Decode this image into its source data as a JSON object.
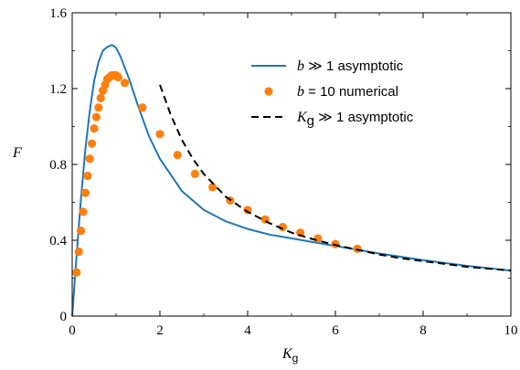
{
  "chart_data": {
    "type": "line",
    "xlabel": {
      "symbol": "K",
      "subscript": "g"
    },
    "ylabel": "F",
    "xlim": [
      0,
      10
    ],
    "ylim": [
      0,
      1.6
    ],
    "x_ticks": [
      0,
      2,
      4,
      6,
      8,
      10
    ],
    "x_tick_labels": [
      "0",
      "2",
      "4",
      "6",
      "8",
      "10"
    ],
    "y_ticks": [
      0,
      0.4,
      0.8,
      1.2,
      1.6
    ],
    "y_tick_labels": [
      "0",
      "0.4",
      "0.8",
      "1.2",
      "1.6"
    ],
    "minor_x_step": 1,
    "minor_y_step": 0.2,
    "grid": false,
    "legend_position": "top-right",
    "series": [
      {
        "name": "b ≫ 1 asymptotic",
        "legend_math": "b",
        "legend_rest": " ≫ 1 asymptotic",
        "style": "line",
        "color": "#1f77b4",
        "x": [
          0,
          0.05,
          0.1,
          0.15,
          0.2,
          0.3,
          0.4,
          0.5,
          0.6,
          0.7,
          0.8,
          0.9,
          0.95,
          1.0,
          1.1,
          1.2,
          1.3,
          1.5,
          1.75,
          2.0,
          2.5,
          3.0,
          3.5,
          4.0,
          4.5,
          5.0,
          5.5,
          6.0,
          7.0,
          8.0,
          9.0,
          10.0
        ],
        "y": [
          0,
          0.16,
          0.32,
          0.47,
          0.62,
          0.88,
          1.08,
          1.24,
          1.34,
          1.4,
          1.42,
          1.43,
          1.425,
          1.415,
          1.37,
          1.31,
          1.25,
          1.11,
          0.95,
          0.83,
          0.66,
          0.56,
          0.5,
          0.46,
          0.43,
          0.41,
          0.39,
          0.37,
          0.33,
          0.295,
          0.265,
          0.24
        ]
      },
      {
        "name": "b = 10 numerical",
        "legend_math": "b",
        "legend_rest": " = 10 numerical",
        "style": "markers",
        "color": "#ff7f0e",
        "x": [
          0.1,
          0.15,
          0.2,
          0.25,
          0.3,
          0.35,
          0.4,
          0.45,
          0.5,
          0.55,
          0.6,
          0.65,
          0.7,
          0.75,
          0.8,
          0.85,
          0.9,
          0.95,
          1.0,
          1.05,
          1.2,
          1.6,
          2.0,
          2.4,
          2.8,
          3.2,
          3.6,
          4.0,
          4.4,
          4.8,
          5.2,
          5.6,
          6.0,
          6.5
        ],
        "y": [
          0.23,
          0.34,
          0.45,
          0.55,
          0.65,
          0.74,
          0.83,
          0.91,
          0.99,
          1.05,
          1.1,
          1.15,
          1.19,
          1.22,
          1.25,
          1.26,
          1.27,
          1.27,
          1.27,
          1.26,
          1.23,
          1.1,
          0.96,
          0.85,
          0.75,
          0.68,
          0.61,
          0.56,
          0.51,
          0.47,
          0.44,
          0.41,
          0.38,
          0.355
        ]
      },
      {
        "name": "Kg ≫ 1 asymptotic",
        "legend_math": "K",
        "legend_sub": "g",
        "legend_rest": " ≫ 1 asymptotic",
        "style": "dashed",
        "color": "#000000",
        "x": [
          2.0,
          2.25,
          2.5,
          2.75,
          3.0,
          3.5,
          4.0,
          4.5,
          5.0,
          5.5,
          6.0,
          6.5,
          7.0,
          7.5,
          8.0,
          8.5,
          9.0,
          9.5,
          10.0
        ],
        "y": [
          1.22,
          1.06,
          0.93,
          0.83,
          0.75,
          0.63,
          0.55,
          0.49,
          0.44,
          0.405,
          0.375,
          0.35,
          0.325,
          0.305,
          0.29,
          0.275,
          0.26,
          0.25,
          0.24
        ]
      }
    ]
  }
}
